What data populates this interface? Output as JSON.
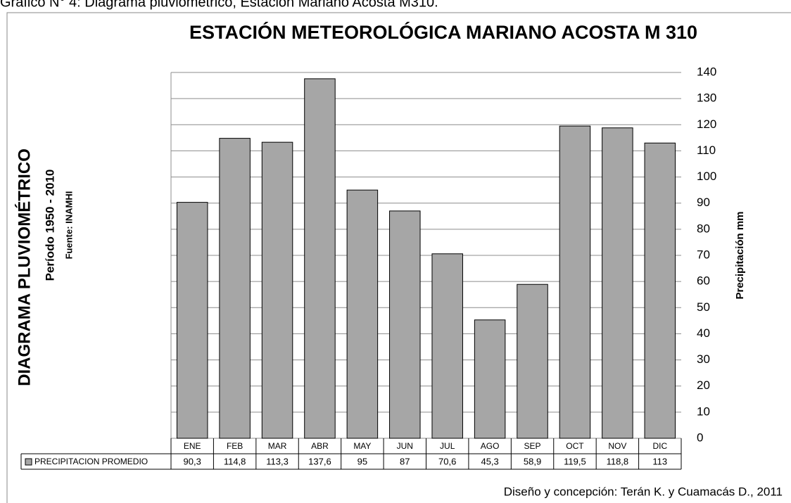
{
  "chart_data": {
    "type": "bar",
    "caption": "Gráfico N° 4: Diagrama pluviométrico, Estación Mariano Acosta M310.",
    "title": "ESTACIÓN METEOROLÓGICA  MARIANO ACOSTA M 310",
    "side_title": "DIAGRAMA PLUVIOMÉTRICO",
    "subtitle": "Período 1950 - 2010",
    "source": "Fuente: INAMHI",
    "y_label": "Precipitación  mm",
    "credit": "Diseño y concepción: Terán K. y Cuamacás D., 2011",
    "categories": [
      "ENE",
      "FEB",
      "MAR",
      "ABR",
      "MAY",
      "JUN",
      "JUL",
      "AGO",
      "SEP",
      "OCT",
      "NOV",
      "DIC"
    ],
    "series": [
      {
        "name": "PRECIPITACION PROMEDIO",
        "color": "#a6a6a6",
        "values": [
          90.3,
          114.8,
          113.3,
          137.6,
          95,
          87,
          70.6,
          45.3,
          58.9,
          119.5,
          118.8,
          113
        ],
        "value_labels": [
          "90,3",
          "114,8",
          "113,3",
          "137,6",
          "95",
          "87",
          "70,6",
          "45,3",
          "58,9",
          "119,5",
          "118,8",
          "113"
        ]
      }
    ],
    "ylim": [
      0,
      140
    ],
    "yticks": [
      0,
      10,
      20,
      30,
      40,
      50,
      60,
      70,
      80,
      90,
      100,
      110,
      120,
      130,
      140
    ],
    "grid": true
  }
}
